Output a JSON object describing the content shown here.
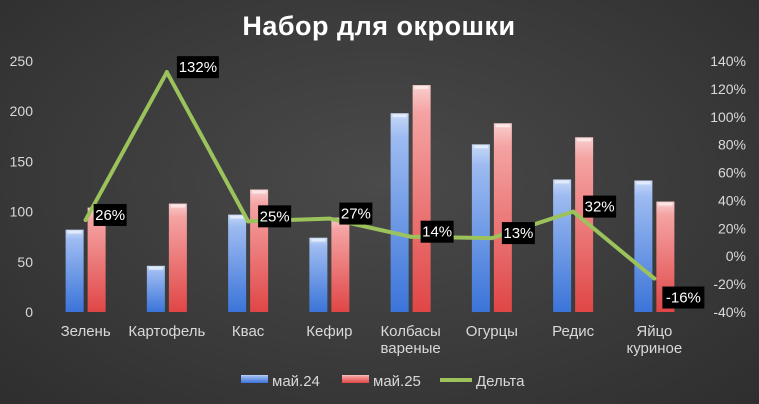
{
  "chart_data": {
    "type": "bar",
    "title": "Набор для окрошки",
    "categories": [
      "Зелень",
      "Картофель",
      "Квас",
      "Кефир",
      "Колбасы\nвареные",
      "Огурцы",
      "Редис",
      "Яйцо\nкуриное"
    ],
    "series": [
      {
        "name": "май.24",
        "type": "bar",
        "axis": "left",
        "values": [
          82,
          46,
          97,
          74,
          198,
          167,
          132,
          131
        ]
      },
      {
        "name": "май.25",
        "type": "bar",
        "axis": "left",
        "values": [
          104,
          108,
          122,
          94,
          226,
          188,
          174,
          110
        ]
      },
      {
        "name": "Дельта",
        "type": "line",
        "axis": "right",
        "values": [
          26,
          132,
          25,
          27,
          14,
          13,
          32,
          -16
        ],
        "labels": [
          "26%",
          "132%",
          "25%",
          "27%",
          "14%",
          "13%",
          "32%",
          "-16%"
        ]
      }
    ],
    "y_left": {
      "min": 0,
      "max": 250,
      "ticks": [
        "0",
        "50",
        "100",
        "150",
        "200",
        "250"
      ]
    },
    "y_right": {
      "min": -40,
      "max": 140,
      "ticks": [
        "-40%",
        "-20%",
        "0%",
        "20%",
        "40%",
        "60%",
        "80%",
        "100%",
        "120%",
        "140%"
      ]
    },
    "grid": false,
    "legend_position": "bottom",
    "colors": {
      "may24": "#5b8ee6",
      "may25": "#f07b7b",
      "delta": "#9bc25b"
    }
  }
}
